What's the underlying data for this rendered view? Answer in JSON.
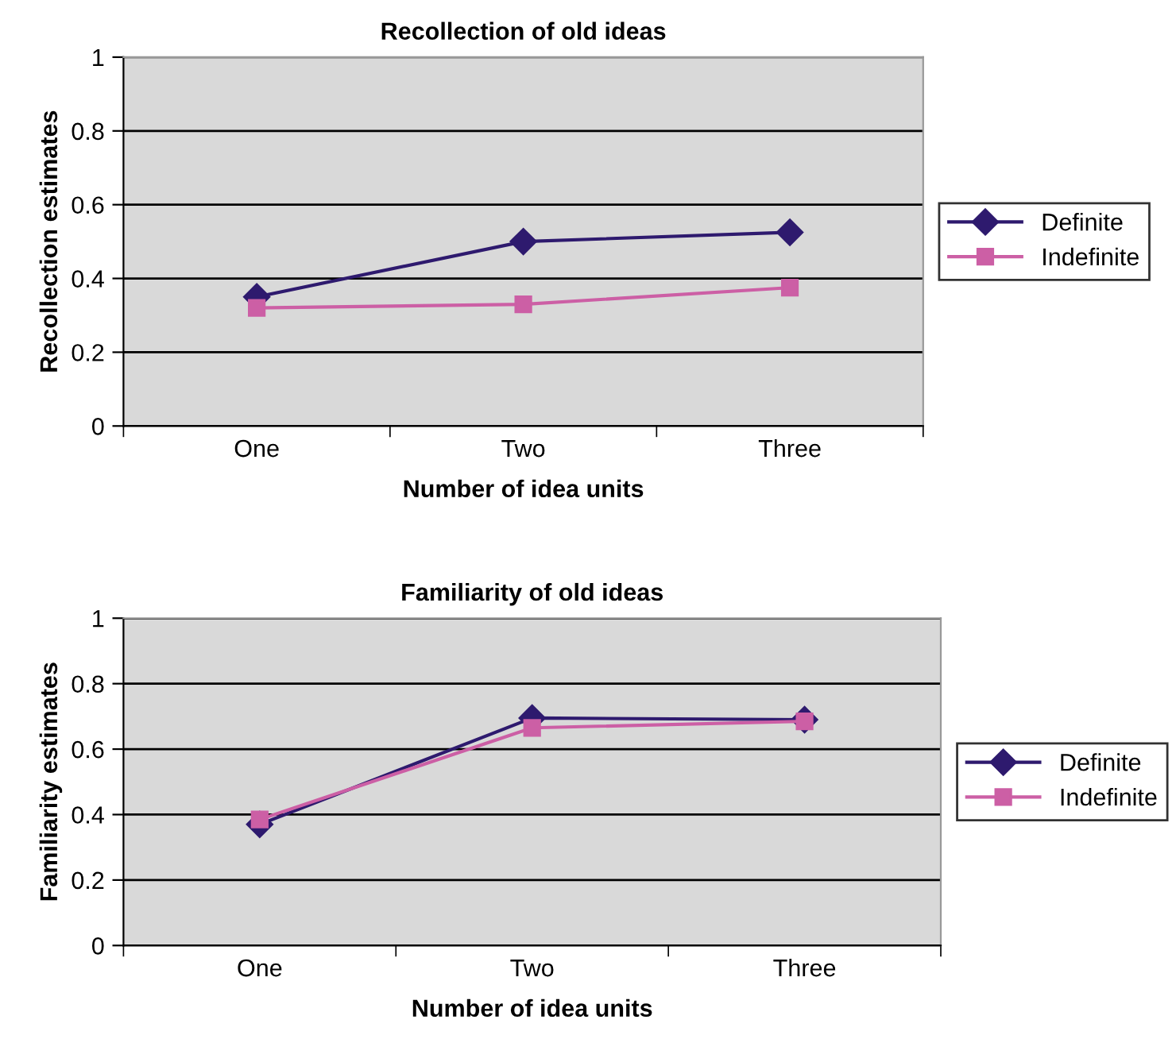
{
  "chart_data": [
    {
      "type": "line",
      "title": "Recollection of old ideas",
      "xlabel": "Number of idea units",
      "ylabel": "Recollection estimates",
      "categories": [
        "One",
        "Two",
        "Three"
      ],
      "series": [
        {
          "name": "Definite",
          "color": "#2e1a6e",
          "values": [
            0.35,
            0.5,
            0.525
          ],
          "marker": "diamond"
        },
        {
          "name": "Indefinite",
          "color": "#cc5fa5",
          "values": [
            0.32,
            0.33,
            0.375
          ],
          "marker": "square"
        }
      ],
      "ylim": [
        0,
        1
      ],
      "yticks": [
        0,
        0.2,
        0.4,
        0.6,
        0.8,
        1
      ],
      "grid": "y",
      "legend": "right",
      "line_style": "solid"
    },
    {
      "type": "line",
      "title": "Familiarity of old ideas",
      "xlabel": "Number of idea units",
      "ylabel": "Familiarity estimates",
      "categories": [
        "One",
        "Two",
        "Three"
      ],
      "series": [
        {
          "name": "Definite",
          "color": "#2e1a6e",
          "values": [
            0.37,
            0.695,
            0.69
          ],
          "marker": "diamond"
        },
        {
          "name": "Indefinite",
          "color": "#cc5fa5",
          "values": [
            0.385,
            0.665,
            0.685
          ],
          "marker": "square"
        }
      ],
      "ylim": [
        0,
        1
      ],
      "yticks": [
        0,
        0.2,
        0.4,
        0.6,
        0.8,
        1
      ],
      "grid": "y",
      "legend": "right",
      "line_style": "solid"
    }
  ]
}
